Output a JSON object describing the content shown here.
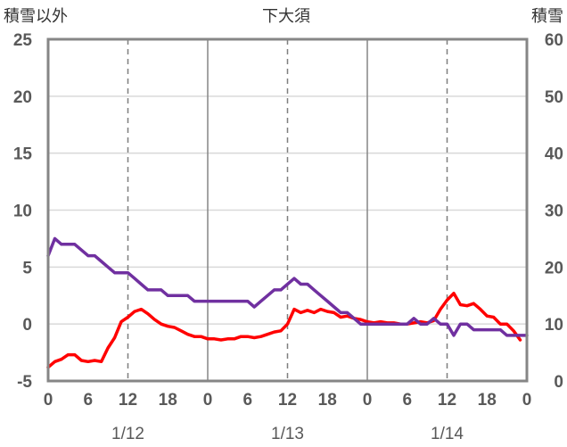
{
  "chart_data": {
    "type": "line",
    "title": "下大須",
    "ylabel_left": "積雪以外",
    "ylabel_right": "積雪",
    "ylim_left": [
      -5,
      25
    ],
    "yticks_left": [
      "-5",
      "0",
      "5",
      "10",
      "15",
      "20",
      "25"
    ],
    "ylim_right": [
      0,
      60
    ],
    "yticks_right": [
      "0",
      "10",
      "20",
      "30",
      "40",
      "50",
      "60"
    ],
    "xlim": [
      0,
      72
    ],
    "xticks": [
      0,
      6,
      12,
      18,
      24,
      30,
      36,
      42,
      48,
      54,
      60,
      66,
      72
    ],
    "xtick_labels": [
      "0",
      "6",
      "12",
      "18",
      "0",
      "6",
      "12",
      "18",
      "0",
      "6",
      "12",
      "18",
      "0"
    ],
    "date_labels": [
      {
        "x": 12,
        "label": "1/12"
      },
      {
        "x": 36,
        "label": "1/13"
      },
      {
        "x": 60,
        "label": "1/14"
      }
    ],
    "grid": "vertical: solid at day boundaries, dashed at noon",
    "series": [
      {
        "axis": "left",
        "color": "#ff0000",
        "x": [
          0,
          1,
          2,
          3,
          4,
          5,
          6,
          7,
          8,
          9,
          10,
          11,
          12,
          13,
          14,
          15,
          16,
          17,
          18,
          19,
          20,
          21,
          22,
          23,
          24,
          25,
          26,
          27,
          28,
          29,
          30,
          31,
          32,
          33,
          34,
          35,
          36,
          37,
          38,
          39,
          40,
          41,
          42,
          43,
          44,
          45,
          46,
          47,
          48,
          49,
          50,
          51,
          52,
          53,
          54,
          55,
          56,
          57,
          58,
          59,
          60,
          61,
          62,
          63,
          64,
          65,
          66,
          67,
          68,
          69,
          70,
          71
        ],
        "values": [
          -3.8,
          -3.3,
          -3.1,
          -2.7,
          -2.7,
          -3.2,
          -3.3,
          -3.2,
          -3.3,
          -2.1,
          -1.2,
          0.2,
          0.6,
          1.1,
          1.3,
          0.9,
          0.4,
          0.0,
          -0.2,
          -0.3,
          -0.6,
          -0.9,
          -1.1,
          -1.1,
          -1.3,
          -1.3,
          -1.4,
          -1.3,
          -1.3,
          -1.1,
          -1.1,
          -1.2,
          -1.1,
          -0.9,
          -0.7,
          -0.6,
          0.0,
          1.3,
          1.0,
          1.2,
          1.0,
          1.3,
          1.1,
          1.0,
          0.6,
          0.7,
          0.5,
          0.4,
          0.2,
          0.1,
          0.2,
          0.1,
          0.1,
          0.0,
          0.0,
          0.1,
          0.2,
          0.1,
          0.3,
          1.3,
          2.1,
          2.7,
          1.7,
          1.6,
          1.8,
          1.3,
          0.7,
          0.6,
          0.0,
          0.0,
          -0.6,
          -1.4
        ]
      },
      {
        "axis": "right",
        "color": "#7030a0",
        "x": [
          0,
          1,
          2,
          3,
          4,
          5,
          6,
          7,
          8,
          9,
          10,
          11,
          12,
          13,
          14,
          15,
          16,
          17,
          18,
          19,
          20,
          21,
          22,
          23,
          24,
          25,
          26,
          27,
          28,
          29,
          30,
          31,
          32,
          33,
          34,
          35,
          36,
          37,
          38,
          39,
          40,
          41,
          42,
          43,
          44,
          45,
          46,
          47,
          48,
          49,
          50,
          51,
          52,
          53,
          54,
          55,
          56,
          57,
          58,
          59,
          60,
          61,
          62,
          63,
          64,
          65,
          66,
          67,
          68,
          69,
          70,
          71,
          72
        ],
        "values": [
          22,
          25,
          24,
          24,
          24,
          23,
          22,
          22,
          21,
          20,
          19,
          19,
          19,
          18,
          17,
          16,
          16,
          16,
          15,
          15,
          15,
          15,
          14,
          14,
          14,
          14,
          14,
          14,
          14,
          14,
          14,
          13,
          14,
          15,
          16,
          16,
          17,
          18,
          17,
          17,
          16,
          15,
          14,
          13,
          12,
          12,
          11,
          10,
          10,
          10,
          10,
          10,
          10,
          10,
          10,
          11,
          10,
          10,
          11,
          10,
          10,
          8,
          10,
          10,
          9,
          9,
          9,
          9,
          9,
          8,
          8,
          8,
          8
        ]
      }
    ]
  }
}
